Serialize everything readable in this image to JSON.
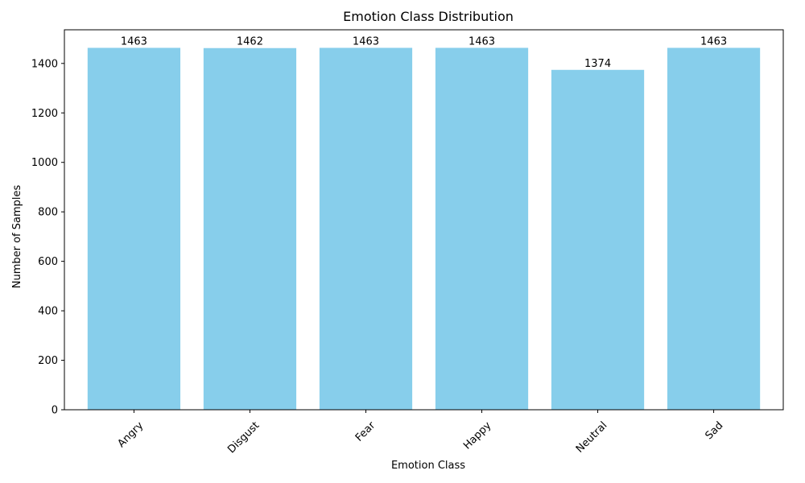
{
  "chart_data": {
    "type": "bar",
    "title": "Emotion Class Distribution",
    "xlabel": "Emotion Class",
    "ylabel": "Number of Samples",
    "categories": [
      "Angry",
      "Disgust",
      "Fear",
      "Happy",
      "Neutral",
      "Sad"
    ],
    "values": [
      1463,
      1462,
      1463,
      1463,
      1374,
      1463
    ],
    "data_labels": [
      "1463",
      "1462",
      "1463",
      "1463",
      "1374",
      "1463"
    ],
    "ylim": [
      0,
      1536
    ],
    "yticks": [
      0,
      200,
      400,
      600,
      800,
      1000,
      1200,
      1400
    ],
    "ytick_labels": [
      "0",
      "200",
      "400",
      "600",
      "800",
      "1000",
      "1200",
      "1400"
    ],
    "xtick_rotation_deg": 45,
    "grid": false,
    "legend": "none",
    "bar_color": "#87CEEB"
  }
}
